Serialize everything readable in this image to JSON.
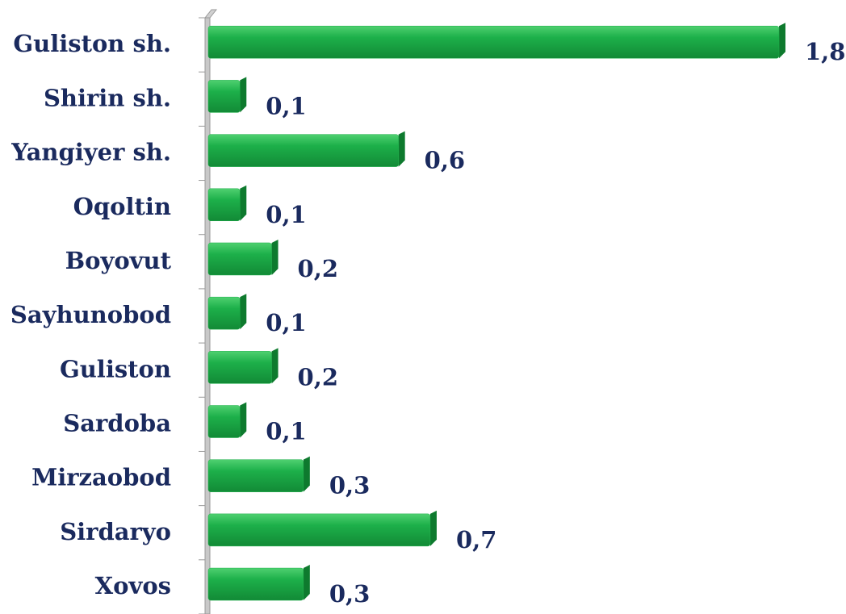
{
  "chart_data": {
    "type": "bar",
    "orientation": "horizontal",
    "categories": [
      "Guliston sh.",
      "Shirin sh.",
      "Yangiyer sh.",
      "Oqoltin",
      "Boyovut",
      "Sayhunobod",
      "Guliston",
      "Sardoba",
      "Mirzaobod",
      "Sirdaryo",
      "Xovos"
    ],
    "values": [
      1.8,
      0.1,
      0.6,
      0.1,
      0.2,
      0.1,
      0.2,
      0.1,
      0.3,
      0.7,
      0.3
    ],
    "value_labels": [
      "1,8",
      "0,1",
      "0,6",
      "0,1",
      "0,2",
      "0,1",
      "0,2",
      "0,1",
      "0,3",
      "0,7",
      "0,3"
    ],
    "color": "#1db04a",
    "xlim": [
      0,
      1.8
    ]
  }
}
